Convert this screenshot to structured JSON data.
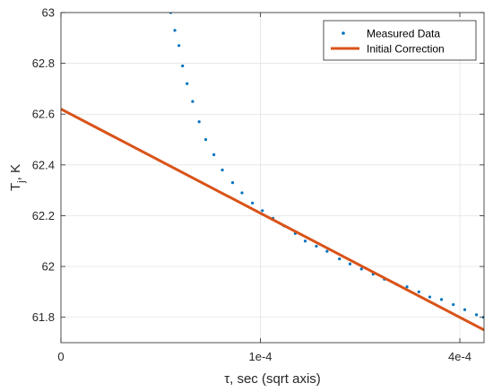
{
  "chart_data": {
    "type": "scatter",
    "xlabel": "τ, sec (sqrt axis)",
    "ylabel_main": "T",
    "ylabel_sub": "j",
    "ylabel_rest": ", K",
    "x_scale": "sqrt",
    "xlim": [
      0,
      0.00045
    ],
    "ylim": [
      61.7,
      63.0
    ],
    "x_ticks": [
      {
        "value": 0,
        "label": "0"
      },
      {
        "value": 0.0001,
        "label": "1e-4"
      },
      {
        "value": 0.0004,
        "label": "4e-4"
      }
    ],
    "y_ticks": [
      {
        "value": 61.8,
        "label": "61.8"
      },
      {
        "value": 62.0,
        "label": "62"
      },
      {
        "value": 62.2,
        "label": "62.2"
      },
      {
        "value": 62.4,
        "label": "62.4"
      },
      {
        "value": 62.6,
        "label": "62.6"
      },
      {
        "value": 62.8,
        "label": "62.8"
      },
      {
        "value": 63.0,
        "label": "63"
      }
    ],
    "grid": true,
    "legend_position": "top-right",
    "series": [
      {
        "name": "Measured Data",
        "kind": "scatter",
        "color": "#0072BD",
        "points": [
          [
            3.03e-05,
            63.0
          ],
          [
            3.26e-05,
            62.93
          ],
          [
            3.5e-05,
            62.87
          ],
          [
            3.72e-05,
            62.79
          ],
          [
            4e-05,
            62.72
          ],
          [
            4.36e-05,
            62.65
          ],
          [
            4.8e-05,
            62.57
          ],
          [
            5.27e-05,
            62.5
          ],
          [
            5.88e-05,
            62.44
          ],
          [
            6.55e-05,
            62.38
          ],
          [
            7.41e-05,
            62.33
          ],
          [
            8.24e-05,
            62.29
          ],
          [
            9.22e-05,
            62.25
          ],
          [
            0.000102,
            62.22
          ],
          [
            0.000113,
            62.19
          ],
          [
            0.000125,
            62.16
          ],
          [
            0.000138,
            62.13
          ],
          [
            0.00015,
            62.1
          ],
          [
            0.000164,
            62.08
          ],
          [
            0.000178,
            62.06
          ],
          [
            0.000195,
            62.03
          ],
          [
            0.00021,
            62.01
          ],
          [
            0.000227,
            61.99
          ],
          [
            0.000245,
            61.97
          ],
          [
            0.000263,
            61.95
          ],
          [
            0.000283,
            61.93
          ],
          [
            0.000301,
            61.92
          ],
          [
            0.000322,
            61.9
          ],
          [
            0.000342,
            61.88
          ],
          [
            0.000364,
            61.87
          ],
          [
            0.000387,
            61.85
          ],
          [
            0.00041,
            61.83
          ],
          [
            0.000434,
            61.81
          ],
          [
            0.000449,
            61.8
          ]
        ]
      },
      {
        "name": "Initial Correction",
        "kind": "line",
        "color": "#D95319",
        "points": [
          [
            0,
            62.62
          ],
          [
            0.00045,
            61.75
          ]
        ]
      }
    ]
  }
}
